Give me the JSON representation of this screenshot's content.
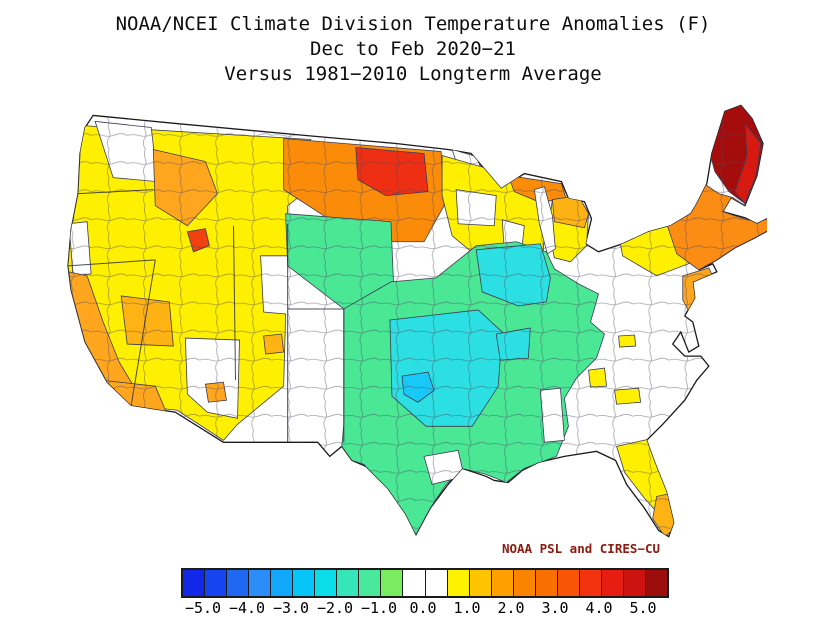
{
  "title": {
    "line1": "NOAA/NCEI Climate Division Temperature Anomalies (F)",
    "line2": "Dec to Feb 2020−21",
    "line3": "Versus 1981−2010 Longterm Average"
  },
  "credit": {
    "text": "NOAA PSL and CIRES−CU",
    "color": "#8c1a10"
  },
  "colorbar": {
    "units": "F",
    "min": -5.5,
    "max": 5.5,
    "segment_step": 0.5,
    "segments": [
      {
        "from": -5.5,
        "to": -5.0,
        "color": "#1228e8"
      },
      {
        "from": -5.0,
        "to": -4.5,
        "color": "#1545f1"
      },
      {
        "from": -4.5,
        "to": -4.0,
        "color": "#1e68f4"
      },
      {
        "from": -4.0,
        "to": -3.5,
        "color": "#2b8df8"
      },
      {
        "from": -3.5,
        "to": -3.0,
        "color": "#11a7fa"
      },
      {
        "from": -3.0,
        "to": -2.5,
        "color": "#06c5f8"
      },
      {
        "from": -2.5,
        "to": -2.0,
        "color": "#0adde8"
      },
      {
        "from": -2.0,
        "to": -1.5,
        "color": "#37e6b8"
      },
      {
        "from": -1.5,
        "to": -1.0,
        "color": "#49e99c"
      },
      {
        "from": -1.0,
        "to": -0.5,
        "color": "#79ec60"
      },
      {
        "from": -0.5,
        "to": 0.0,
        "color": "#ffffff"
      },
      {
        "from": 0.0,
        "to": 0.5,
        "color": "#ffffff"
      },
      {
        "from": 0.5,
        "to": 1.0,
        "color": "#fff200"
      },
      {
        "from": 1.0,
        "to": 1.5,
        "color": "#ffc400"
      },
      {
        "from": 1.5,
        "to": 2.0,
        "color": "#ffa000"
      },
      {
        "from": 2.0,
        "to": 2.5,
        "color": "#fa8400"
      },
      {
        "from": 2.5,
        "to": 3.0,
        "color": "#fa7000"
      },
      {
        "from": 3.0,
        "to": 3.5,
        "color": "#f85508"
      },
      {
        "from": 3.5,
        "to": 4.0,
        "color": "#f3330f"
      },
      {
        "from": 4.0,
        "to": 4.5,
        "color": "#e81d12"
      },
      {
        "from": 4.5,
        "to": 5.0,
        "color": "#cc1310"
      },
      {
        "from": 5.0,
        "to": 5.5,
        "color": "#9c0e0c"
      }
    ],
    "ticks": [
      "−5.0",
      "−4.0",
      "−3.0",
      "−2.0",
      "−1.0",
      "0.0",
      "1.0",
      "2.0",
      "3.0",
      "4.0",
      "5.0"
    ]
  },
  "map": {
    "type": "choropleth",
    "subject": "Continental United States climate divisions",
    "value_meaning": "temperature anomaly (F) vs 1981-2010 average",
    "outline_color": "#1a1a1a",
    "division_line_color": "#3c3c52",
    "regions": [
      {
        "name": "west-great-basin-yellow",
        "anomaly": "+0.5 to +1.5",
        "color": "#ffef00"
      },
      {
        "name": "washington-central-white",
        "anomaly": "0",
        "color": "#ffffff"
      },
      {
        "name": "pacific-northwest-orange",
        "anomaly": "+1.5 to +2.5",
        "color": "#ffa61e"
      },
      {
        "name": "california-coast-orange",
        "anomaly": "+1.5 to +2.5",
        "color": "#ffa61e"
      },
      {
        "name": "california-south-interior-orange",
        "anomaly": "+1.5 to +2.5",
        "color": "#ffa61e"
      },
      {
        "name": "nevada-west-orange",
        "anomaly": "+1.5 to +2.5",
        "color": "#ffb214"
      },
      {
        "name": "idaho-southwest-red",
        "anomaly": "+3.5",
        "color": "#f1410e"
      },
      {
        "name": "northern-plains-orange",
        "anomaly": "+2 to +3",
        "color": "#fb8c0a"
      },
      {
        "name": "dakotas-minnesota-red-core",
        "anomaly": "+3.5 to +4.5",
        "color": "#ee2f14"
      },
      {
        "name": "wyoming-nebraska-green-pocket",
        "anomaly": "−1",
        "color": "#4ae795"
      },
      {
        "name": "minnesota-arrowhead-white",
        "anomaly": "0",
        "color": "#ffffff"
      },
      {
        "name": "minnesota-wisconsin-yellow",
        "anomaly": "+1",
        "color": "#ffef00"
      },
      {
        "name": "minnesota-central-white",
        "anomaly": "0",
        "color": "#ffffff"
      },
      {
        "name": "wisconsin-central-white",
        "anomaly": "0",
        "color": "#ffffff"
      },
      {
        "name": "michigan-upper-peninsula-orange",
        "anomaly": "+2.5",
        "color": "#fb8c0a"
      },
      {
        "name": "michigan-lower-yellow",
        "anomaly": "+1",
        "color": "#ffef00"
      },
      {
        "name": "michigan-north-orange",
        "anomaly": "+2",
        "color": "#ffb214"
      },
      {
        "name": "central-cool-pool-green",
        "anomaly": "−0.5 to −1.5",
        "color": "#4ae795"
      },
      {
        "name": "iowa-illinois-cyan",
        "anomaly": "−1.5 to −2.5",
        "color": "#2bdfe2"
      },
      {
        "name": "southern-plains-cyan",
        "anomaly": "−1.5 to −2.5",
        "color": "#2bdfe2"
      },
      {
        "name": "oklahoma-coldest-cyan",
        "anomaly": "−2.5 to −3",
        "color": "#18c8f7"
      },
      {
        "name": "arkansas-cyan-pocket",
        "anomaly": "−2",
        "color": "#2bdfe2"
      },
      {
        "name": "mississippi-white-strip",
        "anomaly": "0",
        "color": "#ffffff"
      },
      {
        "name": "texas-coast-white",
        "anomaly": "0",
        "color": "#ffffff"
      },
      {
        "name": "arizona-white",
        "anomaly": "0",
        "color": "#ffffff"
      },
      {
        "name": "arizona-orange-division",
        "anomaly": "+2",
        "color": "#ffa61e"
      },
      {
        "name": "new-york-yellow",
        "anomaly": "+1",
        "color": "#ffef00"
      },
      {
        "name": "new-england-orange",
        "anomaly": "+2.5 to +3",
        "color": "#fb8c14"
      },
      {
        "name": "maine-dark-red",
        "anomaly": "+4.5 to +5",
        "color": "#a50d0d"
      },
      {
        "name": "maine-east-red",
        "anomaly": "+4",
        "color": "#d9190f"
      },
      {
        "name": "mid-atlantic-orange",
        "anomaly": "+2",
        "color": "#ffa61e"
      },
      {
        "name": "georgia-yellow-patch-a",
        "anomaly": "+1",
        "color": "#ffef00"
      },
      {
        "name": "georgia-yellow-patch-b",
        "anomaly": "+1",
        "color": "#ffef00"
      },
      {
        "name": "virginia-carolina-yellow-patch",
        "anomaly": "+1",
        "color": "#ffef00"
      },
      {
        "name": "florida-yellow",
        "anomaly": "+1",
        "color": "#ffef00"
      },
      {
        "name": "south-florida-orange",
        "anomaly": "+2",
        "color": "#ffb214"
      },
      {
        "name": "utah-southeast-orange",
        "anomaly": "+2",
        "color": "#ffb214"
      },
      {
        "name": "oregon-coast-white",
        "anomaly": "0",
        "color": "#ffffff"
      },
      {
        "name": "lake-michigan",
        "anomaly": "",
        "color": "#ffffff"
      }
    ]
  }
}
